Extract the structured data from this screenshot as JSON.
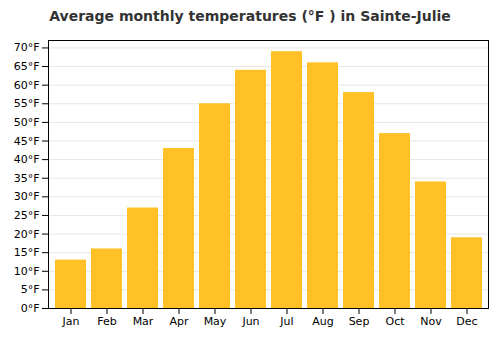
{
  "chart_data": {
    "type": "bar",
    "title": "Average monthly temperatures (°F ) in Sainte-Julie",
    "categories": [
      "Jan",
      "Feb",
      "Mar",
      "Apr",
      "May",
      "Jun",
      "Jul",
      "Aug",
      "Sep",
      "Oct",
      "Nov",
      "Dec"
    ],
    "values": [
      13,
      16,
      27,
      43,
      55,
      64,
      69,
      66,
      58,
      47,
      34,
      19
    ],
    "color": "#FFC125",
    "ylim": [
      0,
      72
    ],
    "yticks": [
      {
        "value": 0,
        "label": "0°F"
      },
      {
        "value": 5,
        "label": "5°F"
      },
      {
        "value": 10,
        "label": "10°F"
      },
      {
        "value": 15,
        "label": "15°F"
      },
      {
        "value": 20,
        "label": "20°F"
      },
      {
        "value": 25,
        "label": "25°F"
      },
      {
        "value": 30,
        "label": "30°F"
      },
      {
        "value": 35,
        "label": "35°F"
      },
      {
        "value": 40,
        "label": "40°F"
      },
      {
        "value": 45,
        "label": "45°F"
      },
      {
        "value": 50,
        "label": "50°F"
      },
      {
        "value": 55,
        "label": "55°F"
      },
      {
        "value": 60,
        "label": "60°F"
      },
      {
        "value": 65,
        "label": "65°F"
      },
      {
        "value": 70,
        "label": "70°F"
      }
    ],
    "grid": true
  }
}
